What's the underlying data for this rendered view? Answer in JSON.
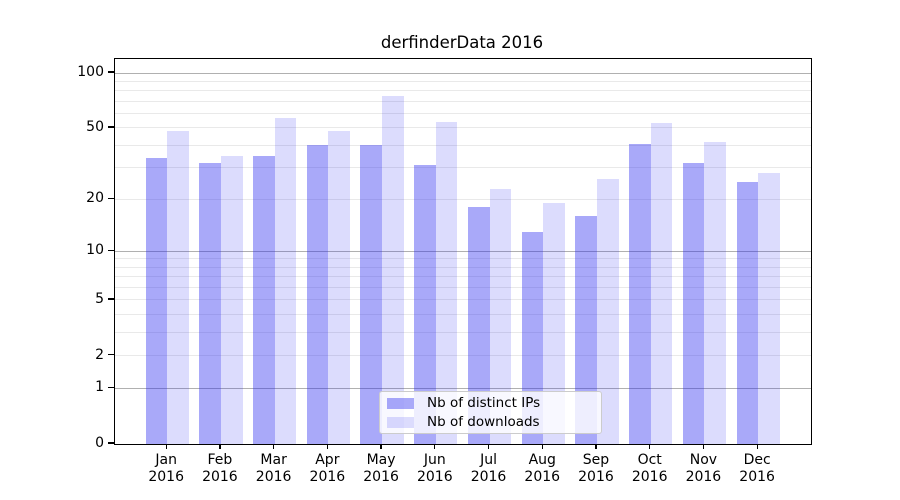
{
  "figure": {
    "title": "derfinderData 2016"
  },
  "chart_data": {
    "type": "bar",
    "title": "derfinderData 2016",
    "subtitle": "",
    "xlabel": "",
    "ylabel": "",
    "year": "2016",
    "months": [
      "Jan",
      "Feb",
      "Mar",
      "Apr",
      "May",
      "Jun",
      "Jul",
      "Aug",
      "Sep",
      "Oct",
      "Nov",
      "Dec"
    ],
    "categories": [
      "Jan 2016",
      "Feb 2016",
      "Mar 2016",
      "Apr 2016",
      "May 2016",
      "Jun 2016",
      "Jul 2016",
      "Aug 2016",
      "Sep 2016",
      "Oct 2016",
      "Nov 2016",
      "Dec 2016"
    ],
    "series": [
      {
        "name": "Nb of distinct IPs",
        "color": "rgba(40,40,240,0.40)",
        "values": [
          34,
          32,
          35,
          40,
          40,
          31,
          18,
          13,
          16,
          41,
          32,
          25
        ]
      },
      {
        "name": "Nb of downloads",
        "color": "rgba(40,40,240,0.16)",
        "values": [
          48,
          35,
          57,
          48,
          75,
          54,
          23,
          19,
          26,
          53,
          42,
          28
        ]
      }
    ],
    "yscale": "log1p",
    "ylim": [
      0,
      100
    ],
    "ytick_values": [
      0,
      1,
      2,
      5,
      10,
      20,
      50,
      100
    ],
    "ytick_labels": [
      "0",
      "1",
      "2",
      "5",
      "10",
      "20",
      "50",
      "100"
    ],
    "grid": "on",
    "grid_major_values": [
      1,
      10,
      100
    ],
    "grid_minor_values": [
      2,
      3,
      4,
      5,
      6,
      7,
      8,
      9,
      20,
      30,
      40,
      50,
      60,
      70,
      80,
      90
    ],
    "legend_position": "lower-center-inside",
    "colors": {
      "bar_distinct_ips": "rgba(40,40,240,0.40)",
      "bar_downloads": "rgba(40,40,240,0.16)",
      "grid_major": "#b0b0b0",
      "grid_minor": "#e9e9e9",
      "spine": "#000000",
      "text": "#000000",
      "legend_border": "#cccccc",
      "legend_background": "rgba(255,255,255,0.8)"
    }
  }
}
